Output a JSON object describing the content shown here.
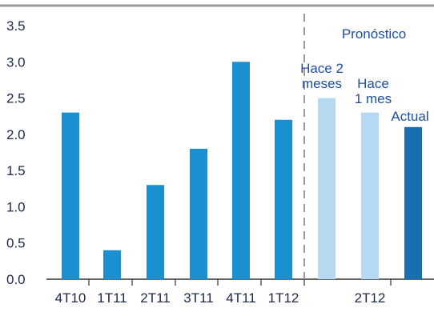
{
  "chart_data": {
    "type": "bar",
    "categories": [
      "4T10",
      "1T11",
      "2T11",
      "3T11",
      "4T11",
      "1T12",
      "2T12",
      "2T12",
      "2T12"
    ],
    "x_tick_labels": [
      "4T10",
      "1T11",
      "2T11",
      "3T11",
      "4T11",
      "1T12",
      "2T12"
    ],
    "values": [
      2.3,
      0.4,
      1.3,
      1.8,
      3.0,
      2.2,
      2.5,
      2.3,
      2.1
    ],
    "ylim": [
      0,
      3.5
    ],
    "y_ticks": [
      "0.0",
      "0.5",
      "1.0",
      "1.5",
      "2.0",
      "2.5",
      "3.0",
      "3.5"
    ],
    "grid": false,
    "forecast_label": "Pronóstico",
    "forecast_bar_labels": [
      {
        "lines": [
          "Hace 2",
          "meses"
        ]
      },
      {
        "lines": [
          "Hace",
          "1 mes"
        ]
      },
      {
        "lines": [
          "Actual"
        ]
      }
    ],
    "colors": {
      "historical": "#1a8fd1",
      "forecast_past": "#b5d9f0",
      "forecast_current": "#1a6fb3",
      "text": "#1b2a4a",
      "annotation": "#1f4fa0",
      "axis": "#333333",
      "divider": "#9a9a9a",
      "top_rule": "#9a9a9a"
    }
  }
}
